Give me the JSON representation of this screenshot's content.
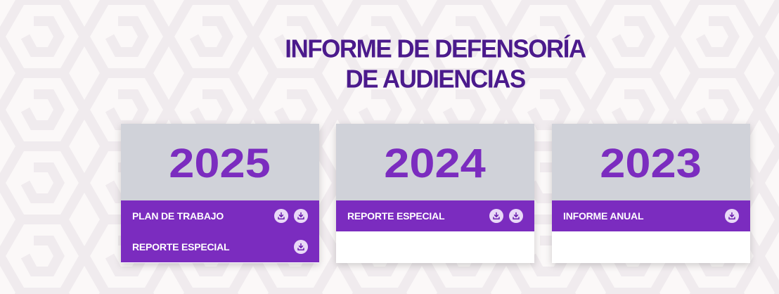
{
  "header": {
    "title_line1": "INFORME DE DEFENSORÍA",
    "title_line2": "DE AUDIENCIAS"
  },
  "colors": {
    "title": "#4b1a8c",
    "accent": "#7b2cbf",
    "card_header_bg": "#d0d2d9",
    "download_icon_bg": "#e9d9f7",
    "page_bg": "#fbf8f8"
  },
  "cards": [
    {
      "year": "2025",
      "docs": [
        {
          "label": "PLAN DE TRABAJO",
          "icon": "download-icon",
          "downloads": 2
        },
        {
          "label": "REPORTE ESPECIAL",
          "icon": "download-icon",
          "downloads": 1
        }
      ]
    },
    {
      "year": "2024",
      "docs": [
        {
          "label": "REPORTE ESPECIAL",
          "icon": "download-icon",
          "downloads": 2
        }
      ]
    },
    {
      "year": "2023",
      "docs": [
        {
          "label": "INFORME ANUAL",
          "icon": "download-icon",
          "downloads": 1
        }
      ]
    }
  ]
}
